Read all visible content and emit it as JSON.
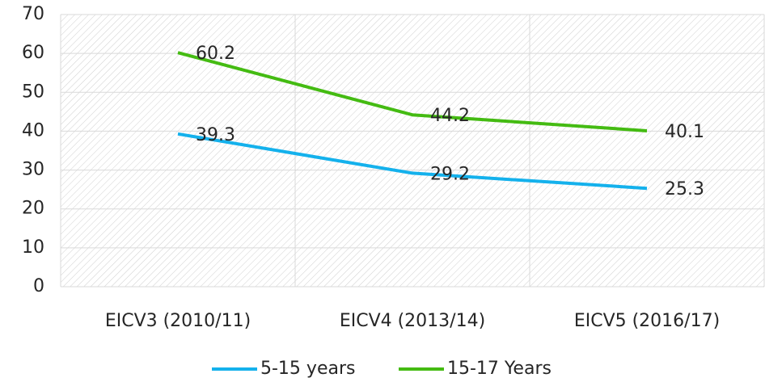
{
  "chart_data": {
    "type": "line",
    "categories": [
      "EICV3 (2010/11)",
      "EICV4 (2013/14)",
      "EICV5 (2016/17)"
    ],
    "series": [
      {
        "name": "5-15 years",
        "color": "#14b1ec",
        "values": [
          39.3,
          29.2,
          25.3
        ]
      },
      {
        "name": "15-17 Years",
        "color": "#44bb12",
        "values": [
          60.2,
          44.2,
          40.1
        ]
      }
    ],
    "ylim": [
      0,
      70
    ],
    "yticks": [
      0,
      10,
      20,
      30,
      40,
      50,
      60,
      70
    ],
    "grid": true,
    "data_labels": true,
    "legend": "bottom"
  }
}
